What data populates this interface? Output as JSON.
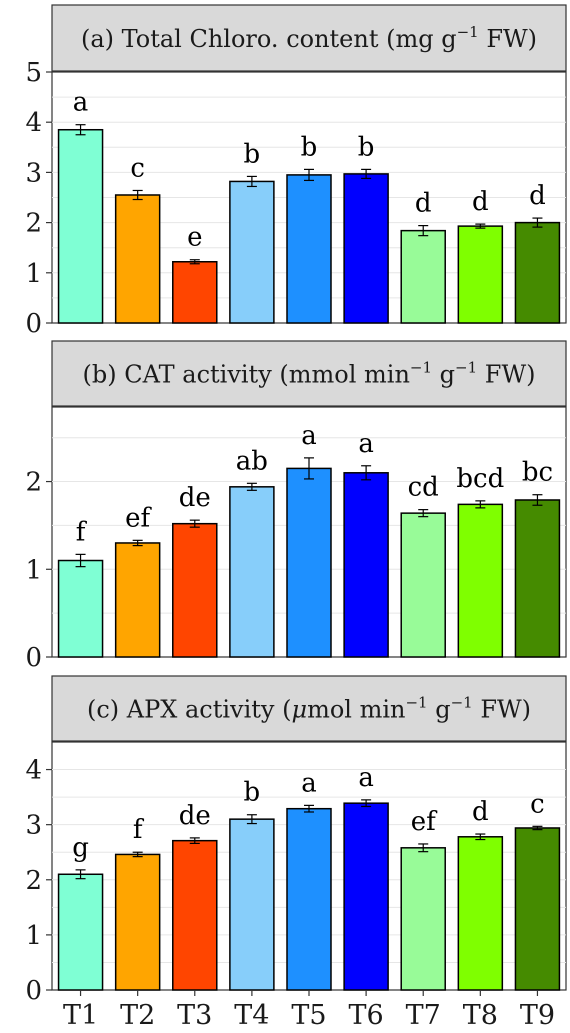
{
  "chart_data": [
    {
      "type": "bar",
      "title": "(a) Total Chloro. content (mg g",
      "title_sup": "−1",
      "title_tail": " FW)",
      "categories": [
        "T1",
        "T2",
        "T3",
        "T4",
        "T5",
        "T6",
        "T7",
        "T8",
        "T9"
      ],
      "values": [
        3.85,
        2.55,
        1.22,
        2.82,
        2.95,
        2.97,
        1.84,
        1.93,
        2.0
      ],
      "errors": [
        0.1,
        0.09,
        0.04,
        0.1,
        0.11,
        0.09,
        0.1,
        0.04,
        0.09
      ],
      "letters": [
        "a",
        "c",
        "e",
        "b",
        "b",
        "b",
        "d",
        "d",
        "d"
      ],
      "ylim": [
        0,
        5
      ],
      "yticks": [
        0,
        1,
        2,
        3,
        4,
        5
      ],
      "grid": true
    },
    {
      "type": "bar",
      "title": "(b) CAT activity (mmol min",
      "title_sup": "−1",
      "title_mid": " g",
      "title_sup2": "−1",
      "title_tail": " FW)",
      "categories": [
        "T1",
        "T2",
        "T3",
        "T4",
        "T5",
        "T6",
        "T7",
        "T8",
        "T9"
      ],
      "values": [
        1.1,
        1.3,
        1.52,
        1.94,
        2.15,
        2.1,
        1.64,
        1.74,
        1.79
      ],
      "errors": [
        0.07,
        0.03,
        0.04,
        0.04,
        0.12,
        0.08,
        0.04,
        0.04,
        0.06
      ],
      "letters": [
        "f",
        "ef",
        "de",
        "ab",
        "a",
        "a",
        "cd",
        "bcd",
        "bc"
      ],
      "ylim": [
        0,
        2.85
      ],
      "yticks": [
        0,
        1,
        2
      ],
      "grid": true
    },
    {
      "type": "bar",
      "title": "(c) APX activity (",
      "title_mu": "μ",
      "title_after_mu": "mol min",
      "title_sup": "−1",
      "title_mid": " g",
      "title_sup2": "−1",
      "title_tail": " FW)",
      "categories": [
        "T1",
        "T2",
        "T3",
        "T4",
        "T5",
        "T6",
        "T7",
        "T8",
        "T9"
      ],
      "values": [
        2.1,
        2.46,
        2.71,
        3.1,
        3.29,
        3.39,
        2.58,
        2.78,
        2.94
      ],
      "errors": [
        0.08,
        0.04,
        0.05,
        0.08,
        0.06,
        0.06,
        0.07,
        0.05,
        0.03
      ],
      "letters": [
        "g",
        "f",
        "de",
        "b",
        "a",
        "a",
        "ef",
        "d",
        "c"
      ],
      "ylim": [
        0,
        4.5
      ],
      "yticks": [
        0,
        1,
        2,
        3,
        4
      ],
      "grid": true
    }
  ],
  "colors": [
    "#7fffd4",
    "#ffa500",
    "#ff4500",
    "#87cefa",
    "#1e90ff",
    "#0000ff",
    "#98fb98",
    "#7fff00",
    "#458b00"
  ]
}
